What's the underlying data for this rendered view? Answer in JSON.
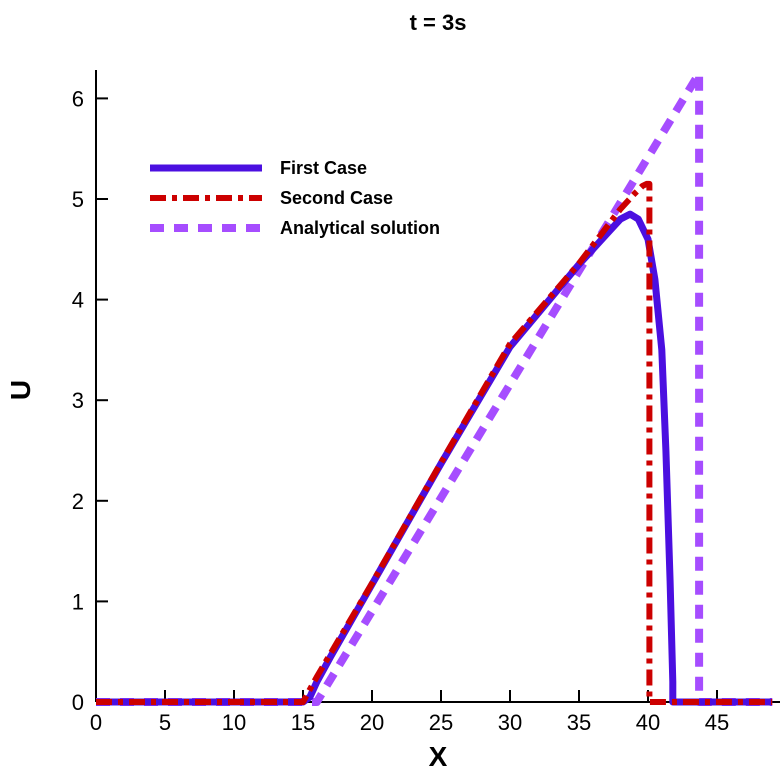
{
  "chart_data": {
    "type": "line",
    "title": "t = 3s",
    "xlabel": "X",
    "ylabel": "U",
    "xlim": [
      0,
      49
    ],
    "ylim": [
      0,
      6.3
    ],
    "xticks": [
      0,
      5,
      10,
      15,
      20,
      25,
      30,
      35,
      40,
      45
    ],
    "yticks": [
      0,
      1,
      2,
      3,
      4,
      5,
      6
    ],
    "grid": false,
    "legend_position": "top-left",
    "series": [
      {
        "name": "First Case",
        "color": "#4B0FE0",
        "style": "solid",
        "x": [
          0,
          15,
          15.5,
          16,
          17,
          20,
          25,
          30,
          35,
          37,
          38,
          38.7,
          39.3,
          40,
          40.5,
          41,
          41.3,
          41.6,
          41.8,
          41.8,
          45,
          49
        ],
        "y": [
          0,
          0,
          0.05,
          0.2,
          0.45,
          1.17,
          2.37,
          3.53,
          4.35,
          4.65,
          4.8,
          4.85,
          4.8,
          4.6,
          4.2,
          3.5,
          2.5,
          1.2,
          0.2,
          0,
          0,
          0
        ]
      },
      {
        "name": "Second Case",
        "color": "#CC0000",
        "style": "dashdot",
        "x": [
          0,
          15,
          16,
          20,
          25,
          30,
          35,
          37,
          38,
          39,
          39.6,
          39.9,
          40.1,
          40.1,
          45,
          49
        ],
        "y": [
          0,
          0,
          0.25,
          1.18,
          2.38,
          3.56,
          4.36,
          4.72,
          4.9,
          5.05,
          5.13,
          5.15,
          5.15,
          0,
          0,
          0
        ]
      },
      {
        "name": "Analytical solution",
        "color": "#A64DFF",
        "style": "dashed",
        "x": [
          0,
          16,
          43.7,
          43.7,
          49
        ],
        "y": [
          0,
          0,
          6.25,
          0,
          0
        ]
      }
    ]
  }
}
